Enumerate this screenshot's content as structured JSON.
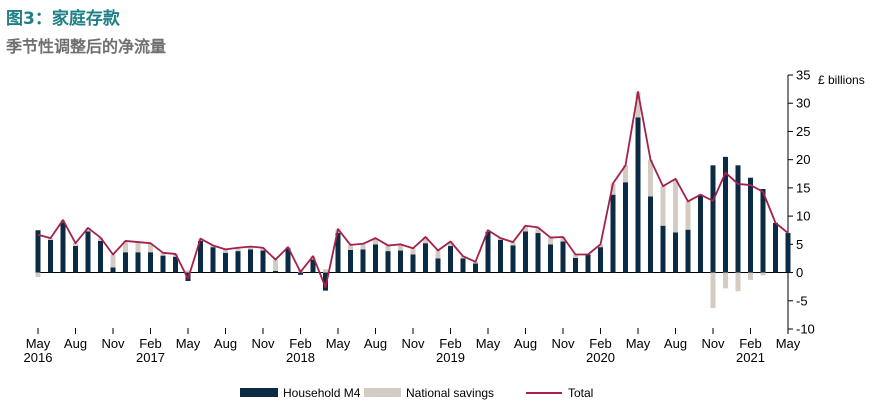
{
  "title": "图3：家庭存款",
  "subtitle": "季节性调整后的净流量",
  "chart_data": {
    "type": "bar",
    "stacked": true,
    "y_unit_label": "£ billions",
    "ylim": [
      -10,
      35
    ],
    "yticks": [
      -10,
      -5,
      0,
      5,
      10,
      15,
      20,
      25,
      30,
      35
    ],
    "x_tick_months": [
      "May",
      "Aug",
      "Nov",
      "Feb",
      "May",
      "Aug",
      "Nov",
      "Feb",
      "May",
      "Aug",
      "Nov",
      "Feb",
      "May",
      "Aug",
      "Nov",
      "Feb",
      "May",
      "Aug",
      "Nov",
      "Feb",
      "May"
    ],
    "x_tick_years": [
      "2016",
      "2017",
      "2018",
      "2019",
      "2020",
      "2021"
    ],
    "legend_position": "bottom",
    "colors": {
      "household_m4": "#0b2a43",
      "national_savings": "#d4cbc2",
      "total": "#a3214b"
    },
    "categories": [
      "2016-05",
      "2016-06",
      "2016-07",
      "2016-08",
      "2016-09",
      "2016-10",
      "2016-11",
      "2016-12",
      "2017-01",
      "2017-02",
      "2017-03",
      "2017-04",
      "2017-05",
      "2017-06",
      "2017-07",
      "2017-08",
      "2017-09",
      "2017-10",
      "2017-11",
      "2017-12",
      "2018-01",
      "2018-02",
      "2018-03",
      "2018-04",
      "2018-05",
      "2018-06",
      "2018-07",
      "2018-08",
      "2018-09",
      "2018-10",
      "2018-11",
      "2018-12",
      "2019-01",
      "2019-02",
      "2019-03",
      "2019-04",
      "2019-05",
      "2019-06",
      "2019-07",
      "2019-08",
      "2019-09",
      "2019-10",
      "2019-11",
      "2019-12",
      "2020-01",
      "2020-02",
      "2020-03",
      "2020-04",
      "2020-05",
      "2020-06",
      "2020-07",
      "2020-08",
      "2020-09",
      "2020-10",
      "2020-11",
      "2020-12",
      "2021-01",
      "2021-02",
      "2021-03",
      "2021-04",
      "2021-05"
    ],
    "series": [
      {
        "name": "Household M4",
        "type": "bar",
        "values": [
          7.5,
          5.8,
          8.9,
          4.7,
          7.3,
          5.6,
          0.9,
          3.6,
          3.6,
          3.6,
          3.0,
          2.8,
          -1.5,
          5.6,
          4.5,
          3.5,
          3.8,
          4.1,
          3.9,
          0.3,
          4.3,
          -0.4,
          2.3,
          -3.2,
          7.0,
          4.0,
          4.1,
          5.0,
          3.8,
          3.9,
          3.2,
          5.2,
          2.5,
          4.7,
          2.5,
          1.6,
          7.2,
          5.8,
          4.8,
          7.3,
          7.0,
          5.0,
          5.5,
          2.6,
          3.2,
          4.5,
          13.8,
          16.0,
          27.5,
          13.5,
          8.3,
          7.1,
          7.6,
          13.8,
          19.0,
          20.5,
          19.0,
          16.8,
          14.8,
          8.8,
          7.0
        ]
      },
      {
        "name": "National savings",
        "type": "bar",
        "values": [
          -0.8,
          0.3,
          0.4,
          0.5,
          0.6,
          0.6,
          2.3,
          2.0,
          1.8,
          1.6,
          0.5,
          0.5,
          0.4,
          0.4,
          0.3,
          0.6,
          0.6,
          0.5,
          0.5,
          2.0,
          0.2,
          0.5,
          0.6,
          0.6,
          0.7,
          0.9,
          1.0,
          1.1,
          1.0,
          1.1,
          1.1,
          1.1,
          1.4,
          0.8,
          0.4,
          0.3,
          0.3,
          0.3,
          0.6,
          1.0,
          1.0,
          1.2,
          0.8,
          0.6,
          0.0,
          0.5,
          2.0,
          3.0,
          4.5,
          6.5,
          7.0,
          9.5,
          5.0,
          0.0,
          -6.3,
          -2.8,
          -3.3,
          -1.3,
          -0.5,
          0.0,
          0.0
        ]
      },
      {
        "name": "Total",
        "type": "line",
        "values": [
          6.7,
          6.1,
          9.3,
          5.2,
          7.9,
          6.2,
          3.2,
          5.6,
          5.4,
          5.2,
          3.5,
          3.3,
          -1.1,
          6.0,
          4.8,
          4.1,
          4.4,
          4.6,
          4.4,
          2.3,
          4.5,
          0.1,
          2.9,
          -2.6,
          7.7,
          4.9,
          5.1,
          6.1,
          4.8,
          5.0,
          4.3,
          6.3,
          3.9,
          5.5,
          2.9,
          1.9,
          7.5,
          6.1,
          5.4,
          8.3,
          8.0,
          6.2,
          6.3,
          3.2,
          3.2,
          5.0,
          15.8,
          19.0,
          32.0,
          20.0,
          15.3,
          16.6,
          12.6,
          13.8,
          12.7,
          17.7,
          15.7,
          15.5,
          14.3,
          8.8,
          7.0
        ]
      }
    ],
    "legend": [
      "Household M4",
      "National savings",
      "Total"
    ]
  }
}
